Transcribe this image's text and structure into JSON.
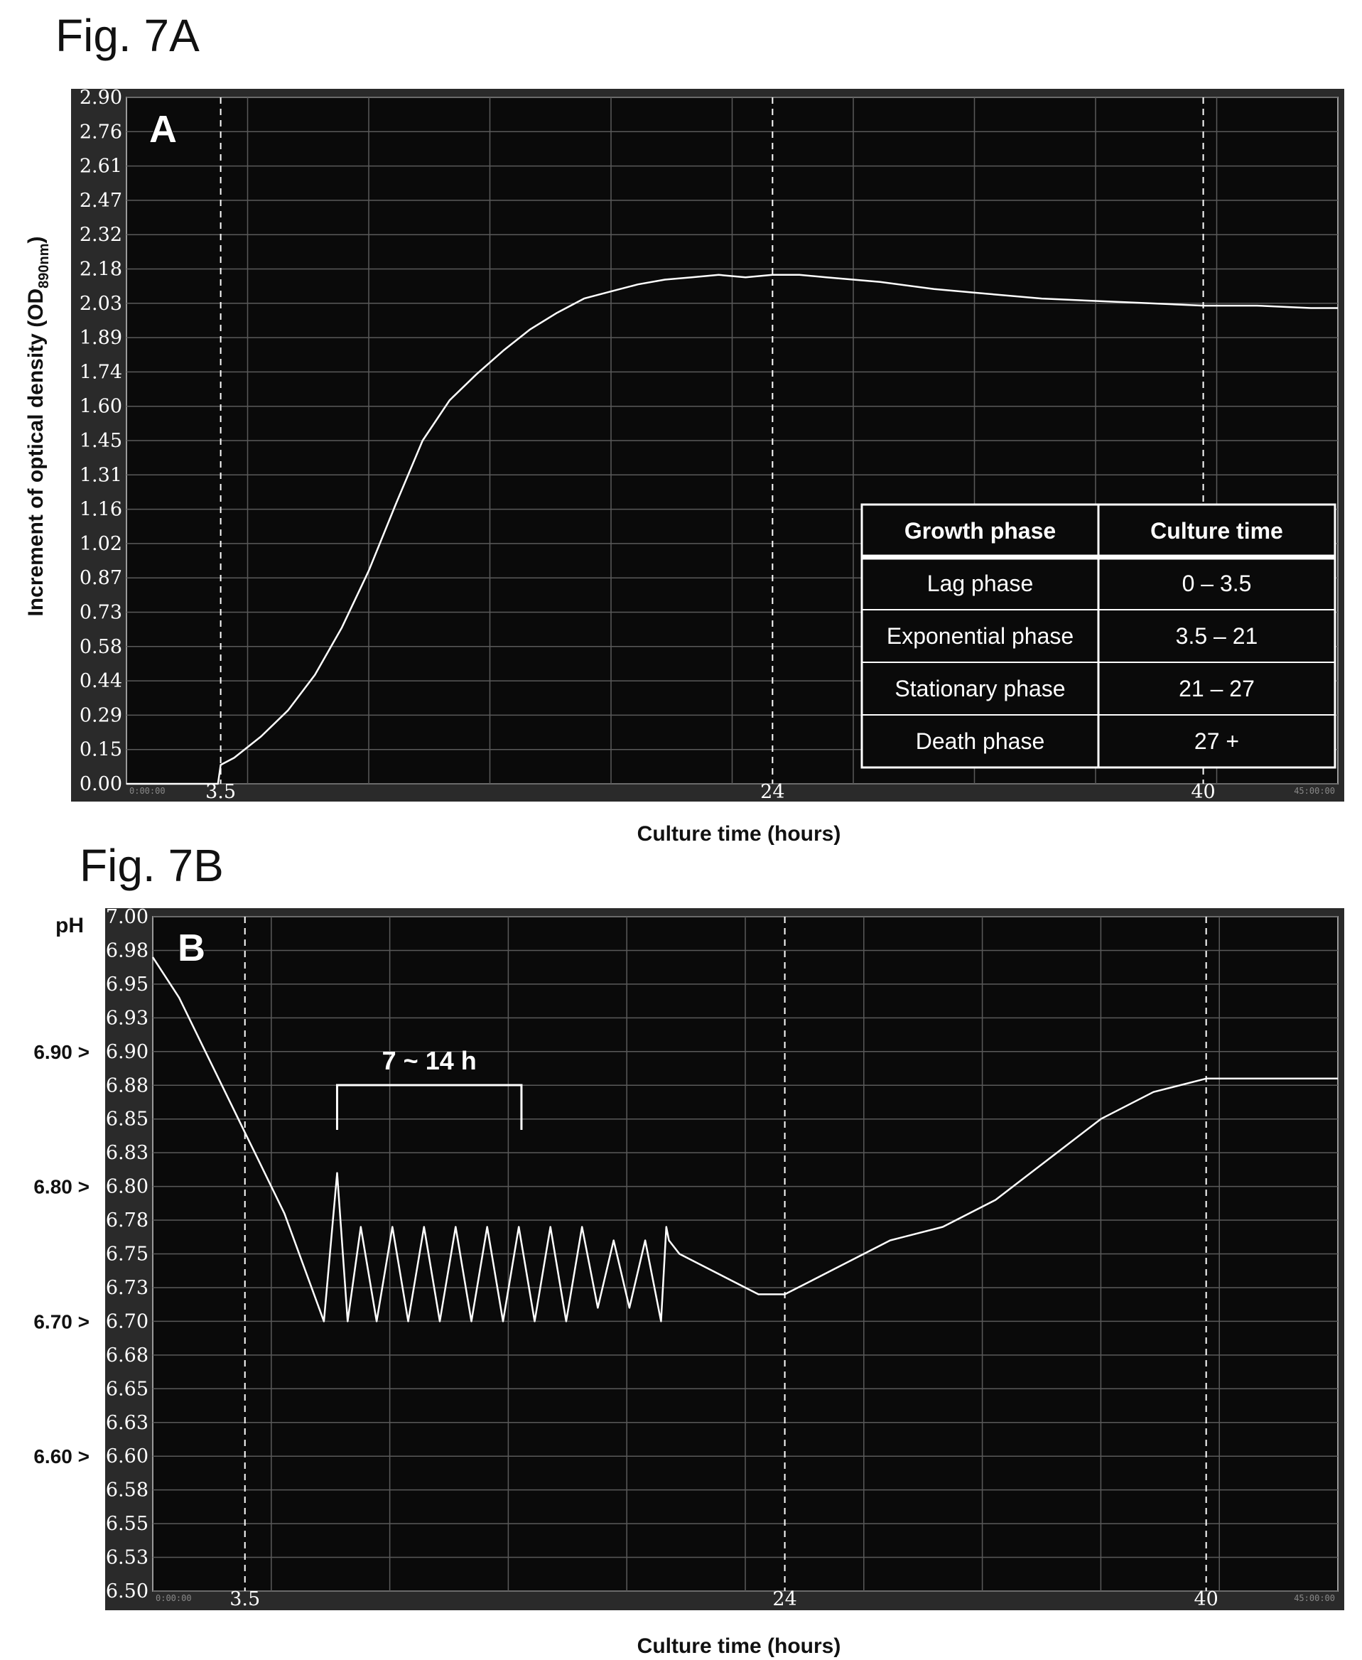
{
  "figure_labels": {
    "a": "Fig. 7A",
    "b": "Fig. 7B"
  },
  "chart_data": [
    {
      "type": "line",
      "panel": "A",
      "ylabel": "Increment of optical density (OD890nm)",
      "xlabel": "Culture time (hours)",
      "xlim": [
        0,
        45
      ],
      "ylim": [
        0,
        2.9
      ],
      "yticks": [
        "2.90",
        "2.76",
        "2.61",
        "2.47",
        "2.32",
        "2.18",
        "2.03",
        "1.89",
        "1.74",
        "1.60",
        "1.45",
        "1.31",
        "1.16",
        "1.02",
        "0.87",
        "0.73",
        "0.58",
        "0.44",
        "0.29",
        "0.15",
        "0.00"
      ],
      "xtick_labels": [
        {
          "x": 3.5,
          "label": "3.5"
        },
        {
          "x": 24,
          "label": "24"
        },
        {
          "x": 40,
          "label": "40"
        }
      ],
      "x_start_timestamp": "0:00:00",
      "x_end_timestamp": "45:00:00",
      "vlines": [
        3.5,
        24,
        40
      ],
      "grid": true,
      "series": [
        {
          "x": [
            0,
            3.4,
            3.5,
            4,
            5,
            6,
            7,
            8,
            9,
            10,
            11,
            12,
            13,
            14,
            15,
            16,
            17,
            18,
            19,
            20,
            21,
            22,
            23,
            24,
            25,
            26,
            27,
            28,
            30,
            32,
            34,
            36,
            38,
            40,
            42,
            44,
            45
          ],
          "y": [
            0,
            0,
            0.08,
            0.11,
            0.2,
            0.31,
            0.46,
            0.66,
            0.9,
            1.18,
            1.45,
            1.62,
            1.73,
            1.83,
            1.92,
            1.99,
            2.05,
            2.08,
            2.11,
            2.13,
            2.14,
            2.15,
            2.14,
            2.15,
            2.15,
            2.14,
            2.13,
            2.12,
            2.09,
            2.07,
            2.05,
            2.04,
            2.03,
            2.02,
            2.02,
            2.01,
            2.01
          ]
        }
      ],
      "table": {
        "headers": [
          "Growth phase",
          "Culture time"
        ],
        "rows": [
          [
            "Lag phase",
            "0 – 3.5"
          ],
          [
            "Exponential phase",
            "3.5 – 21"
          ],
          [
            "Stationary phase",
            "21 – 27"
          ],
          [
            "Death phase",
            "27 +"
          ]
        ]
      }
    },
    {
      "type": "line",
      "panel": "B",
      "ylabel": "pH",
      "xlabel": "Culture time (hours)",
      "xlim": [
        0,
        45
      ],
      "ylim": [
        6.5,
        7.0
      ],
      "yticks": [
        "7.00",
        "6.98",
        "6.95",
        "6.93",
        "6.90",
        "6.88",
        "6.85",
        "6.83",
        "6.80",
        "6.78",
        "6.75",
        "6.73",
        "6.70",
        "6.68",
        "6.65",
        "6.63",
        "6.60",
        "6.58",
        "6.55",
        "6.53",
        "6.50"
      ],
      "setpoint_markers": [
        "6.90 >",
        "6.80 >",
        "6.70 >",
        "6.60 >"
      ],
      "xtick_labels": [
        {
          "x": 3.5,
          "label": "3.5"
        },
        {
          "x": 24,
          "label": "24"
        },
        {
          "x": 40,
          "label": "40"
        }
      ],
      "x_start_timestamp": "0:00:00",
      "x_end_timestamp": "45:00:00",
      "vlines": [
        3.5,
        24,
        40
      ],
      "grid": true,
      "annotation": {
        "text": "7 ~ 14 h",
        "x_start": 7,
        "x_end": 14
      },
      "series": [
        {
          "x": [
            0,
            1,
            2,
            3,
            3.5,
            4,
            5,
            6.5,
            7,
            7.4,
            7.9,
            8.5,
            9.1,
            9.7,
            10.3,
            10.9,
            11.5,
            12.1,
            12.7,
            13.3,
            13.9,
            14.5,
            15.1,
            15.7,
            16.3,
            16.9,
            17.5,
            18.1,
            18.7,
            19.3,
            19.5,
            19.6,
            20,
            21,
            22,
            23,
            24,
            25,
            26,
            27,
            28,
            30,
            32,
            34,
            36,
            38,
            40,
            42,
            44,
            45
          ],
          "y": [
            6.97,
            6.94,
            6.9,
            6.86,
            6.84,
            6.82,
            6.78,
            6.7,
            6.81,
            6.7,
            6.77,
            6.7,
            6.77,
            6.7,
            6.77,
            6.7,
            6.77,
            6.7,
            6.77,
            6.7,
            6.77,
            6.7,
            6.77,
            6.7,
            6.77,
            6.71,
            6.76,
            6.71,
            6.76,
            6.7,
            6.77,
            6.76,
            6.75,
            6.74,
            6.73,
            6.72,
            6.72,
            6.73,
            6.74,
            6.75,
            6.76,
            6.77,
            6.79,
            6.82,
            6.85,
            6.87,
            6.88,
            6.88,
            6.88,
            6.88
          ]
        }
      ]
    }
  ]
}
